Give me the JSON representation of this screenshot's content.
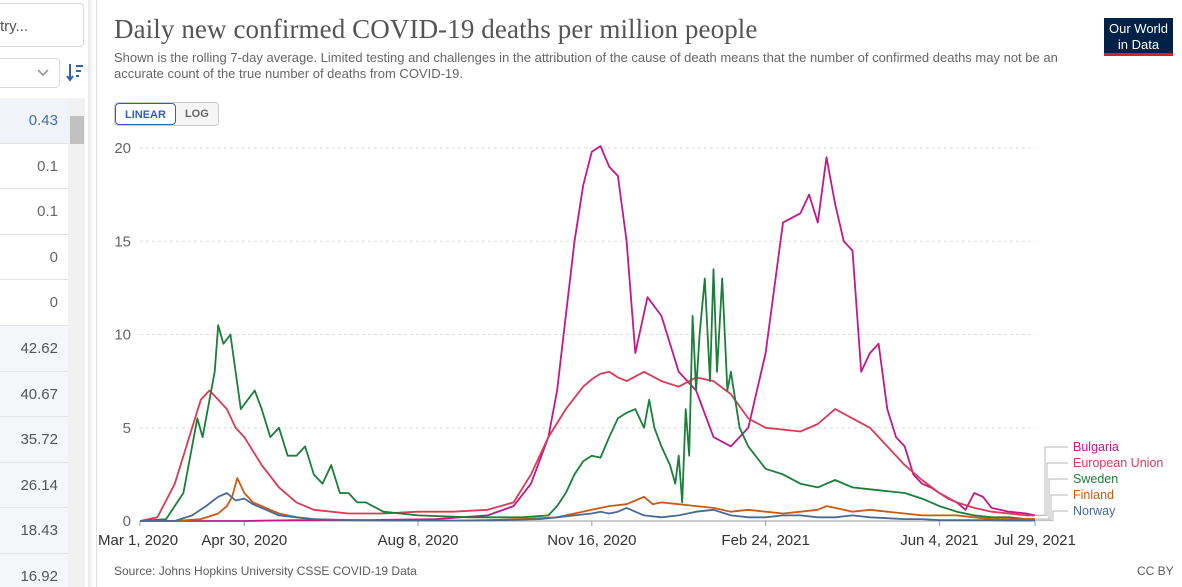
{
  "sidebar": {
    "search_text": "try...",
    "rows": [
      "0.43",
      "0.1",
      "0.1",
      "0",
      "0",
      "42.62",
      "40.67",
      "35.72",
      "26.14",
      "18.43",
      "16.92"
    ]
  },
  "header": {
    "title": "Daily new confirmed COVID-19 deaths per million people",
    "subtitle": "Shown is the rolling 7-day average. Limited testing and challenges in the attribution of the cause of death means that the number of confirmed deaths may not be an accurate count of the true number of deaths from COVID-19.",
    "logo_line1": "Our World",
    "logo_line2": "in Data"
  },
  "controls": {
    "linear_label": "LINEAR",
    "log_label": "LOG"
  },
  "footer": {
    "source": "Source: Johns Hopkins University CSSE COVID-19 Data",
    "license": "CC BY"
  },
  "colors": {
    "Bulgaria": "#c2188a",
    "European Union": "#dc3a56",
    "Sweden": "#1a7f39",
    "Finland": "#cc5a12",
    "Norway": "#4a6a96"
  },
  "chart_data": {
    "type": "line",
    "title": "Daily new confirmed COVID-19 deaths per million people",
    "xlabel": "",
    "ylabel": "",
    "ylim": [
      0,
      20
    ],
    "yticks": [
      0,
      5,
      10,
      15,
      20
    ],
    "xlim": [
      0,
      515
    ],
    "xticks": [
      {
        "day": 0,
        "label": "Mar 1, 2020"
      },
      {
        "day": 60,
        "label": "Apr 30, 2020"
      },
      {
        "day": 160,
        "label": "Aug 8, 2020"
      },
      {
        "day": 260,
        "label": "Nov 16, 2020"
      },
      {
        "day": 360,
        "label": "Feb 24, 2021"
      },
      {
        "day": 460,
        "label": "Jun 4, 2021"
      },
      {
        "day": 515,
        "label": "Jul 29, 2021"
      }
    ],
    "grid": true,
    "series": [
      {
        "name": "Bulgaria",
        "x": [
          0,
          20,
          40,
          60,
          90,
          130,
          170,
          200,
          215,
          225,
          235,
          240,
          245,
          250,
          255,
          260,
          265,
          270,
          275,
          280,
          285,
          292,
          300,
          310,
          320,
          330,
          340,
          350,
          360,
          370,
          380,
          385,
          390,
          395,
          400,
          405,
          410,
          415,
          420,
          425,
          430,
          435,
          440,
          445,
          450,
          455,
          460,
          465,
          470,
          475,
          480,
          485,
          490,
          500,
          510,
          515
        ],
        "values": [
          0,
          0,
          0,
          0,
          0.05,
          0.05,
          0.1,
          0.3,
          0.8,
          2,
          4.5,
          7,
          11,
          15,
          18,
          19.8,
          20.1,
          19,
          18.5,
          15,
          9,
          12,
          11,
          8,
          7,
          4.5,
          4,
          5,
          9,
          16,
          16.5,
          17.5,
          16,
          19.5,
          17,
          15,
          14.5,
          8,
          9,
          9.5,
          6,
          4.5,
          4,
          2.5,
          2,
          1.8,
          1.5,
          1.2,
          1,
          0.6,
          1.5,
          1.3,
          0.7,
          0.5,
          0.4,
          0.3
        ]
      },
      {
        "name": "European Union",
        "x": [
          0,
          10,
          20,
          30,
          35,
          40,
          45,
          50,
          55,
          60,
          70,
          80,
          90,
          100,
          120,
          140,
          160,
          180,
          200,
          215,
          225,
          235,
          245,
          255,
          260,
          265,
          270,
          275,
          280,
          290,
          300,
          310,
          320,
          330,
          340,
          350,
          360,
          370,
          380,
          390,
          400,
          410,
          420,
          430,
          440,
          450,
          460,
          470,
          480,
          490,
          500,
          510,
          515
        ],
        "values": [
          0,
          0.2,
          2,
          5,
          6.5,
          7,
          6.5,
          6,
          5,
          4.5,
          3,
          1.8,
          1,
          0.6,
          0.4,
          0.4,
          0.5,
          0.5,
          0.6,
          1,
          2.5,
          4.5,
          6,
          7.2,
          7.6,
          7.9,
          8,
          7.7,
          7.5,
          8,
          7.5,
          7.2,
          7.7,
          7.5,
          6.8,
          5.5,
          5,
          4.9,
          4.8,
          5.2,
          6,
          5.5,
          5,
          4,
          3,
          2.2,
          1.5,
          1,
          0.7,
          0.5,
          0.4,
          0.3,
          0.3
        ]
      },
      {
        "name": "Sweden",
        "x": [
          0,
          15,
          25,
          30,
          33,
          36,
          40,
          43,
          45,
          48,
          52,
          55,
          58,
          62,
          66,
          70,
          75,
          80,
          85,
          90,
          95,
          100,
          105,
          110,
          115,
          120,
          125,
          130,
          140,
          160,
          190,
          220,
          235,
          240,
          245,
          250,
          255,
          260,
          265,
          270,
          275,
          280,
          285,
          290,
          293,
          296,
          300,
          305,
          308,
          310,
          312,
          314,
          316,
          318,
          320,
          322,
          325,
          328,
          330,
          332,
          335,
          338,
          340,
          345,
          350,
          360,
          370,
          380,
          390,
          400,
          410,
          420,
          430,
          440,
          450,
          460,
          470,
          480,
          490,
          500,
          510,
          515
        ],
        "values": [
          0,
          0.1,
          1.5,
          4,
          5.5,
          4.5,
          6.5,
          8,
          10.5,
          9.5,
          10,
          8,
          6,
          6.5,
          7,
          6,
          4.5,
          5,
          3.5,
          3.5,
          4,
          2.5,
          2,
          3,
          1.5,
          1.5,
          1,
          1,
          0.5,
          0.3,
          0.2,
          0.2,
          0.3,
          0.8,
          1.5,
          2.5,
          3.2,
          3.5,
          3.4,
          4.5,
          5.5,
          5.8,
          6,
          5,
          6.5,
          5,
          4,
          3,
          2,
          3.5,
          1,
          6,
          3.5,
          11,
          7,
          10,
          13,
          7.5,
          13.5,
          8,
          13,
          7,
          8,
          5,
          4,
          2.8,
          2.5,
          2,
          1.8,
          2.2,
          1.8,
          1.7,
          1.6,
          1.5,
          1.2,
          0.8,
          0.5,
          0.3,
          0.2,
          0.2,
          0.1,
          0.1
        ]
      },
      {
        "name": "Finland",
        "x": [
          0,
          20,
          35,
          45,
          50,
          53,
          56,
          60,
          65,
          70,
          75,
          80,
          90,
          100,
          120,
          150,
          180,
          200,
          220,
          240,
          250,
          260,
          270,
          280,
          285,
          290,
          295,
          300,
          310,
          320,
          330,
          340,
          350,
          360,
          370,
          380,
          390,
          395,
          400,
          410,
          420,
          430,
          440,
          450,
          460,
          470,
          480,
          490,
          500,
          510,
          515
        ],
        "values": [
          0,
          0,
          0.1,
          0.4,
          0.8,
          1.3,
          2.3,
          1.5,
          1,
          0.8,
          0.6,
          0.4,
          0.2,
          0.1,
          0.05,
          0.02,
          0.02,
          0.05,
          0.1,
          0.2,
          0.4,
          0.6,
          0.8,
          0.9,
          1.1,
          1.3,
          0.9,
          1.0,
          0.9,
          0.8,
          0.7,
          0.5,
          0.6,
          0.5,
          0.4,
          0.5,
          0.6,
          0.8,
          0.7,
          0.5,
          0.6,
          0.5,
          0.4,
          0.3,
          0.3,
          0.3,
          0.2,
          0.1,
          0.1,
          0.1,
          0.1
        ]
      },
      {
        "name": "Norway",
        "x": [
          0,
          20,
          30,
          38,
          45,
          50,
          55,
          60,
          65,
          70,
          80,
          90,
          100,
          120,
          150,
          180,
          210,
          230,
          240,
          250,
          260,
          265,
          270,
          275,
          280,
          285,
          290,
          300,
          310,
          320,
          330,
          340,
          350,
          360,
          370,
          380,
          390,
          400,
          410,
          420,
          430,
          440,
          450,
          460,
          470,
          480,
          490,
          500,
          510,
          515
        ],
        "values": [
          0,
          0,
          0.3,
          0.8,
          1.3,
          1.5,
          1.1,
          1.2,
          0.9,
          0.7,
          0.3,
          0.2,
          0.1,
          0.05,
          0.02,
          0.02,
          0.05,
          0.1,
          0.2,
          0.3,
          0.4,
          0.5,
          0.4,
          0.5,
          0.7,
          0.5,
          0.3,
          0.2,
          0.3,
          0.5,
          0.6,
          0.3,
          0.2,
          0.2,
          0.3,
          0.3,
          0.2,
          0.2,
          0.3,
          0.2,
          0.15,
          0.1,
          0.1,
          0.05,
          0.05,
          0.05,
          0.05,
          0.02,
          0.02,
          0.02
        ]
      }
    ]
  }
}
